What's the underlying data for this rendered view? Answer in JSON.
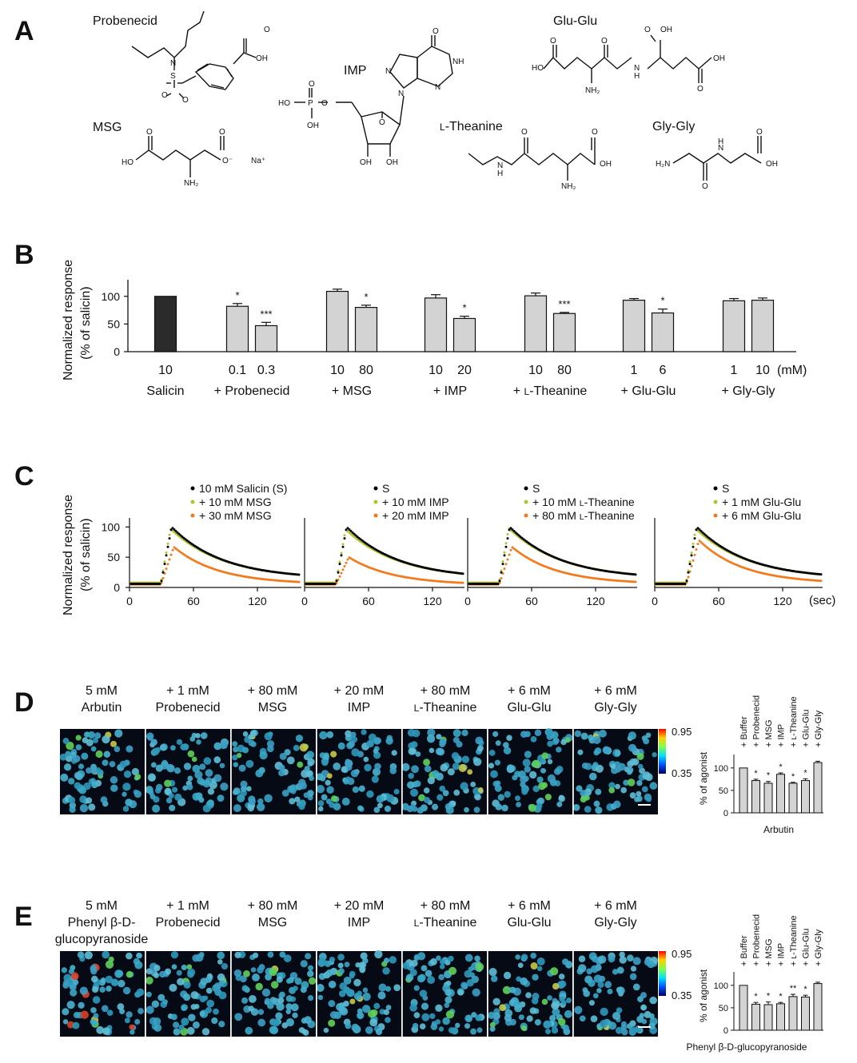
{
  "panels": {
    "a": "A",
    "b": "B",
    "c": "C",
    "d": "D",
    "e": "E"
  },
  "panel_a": {
    "compounds": [
      "Probenecid",
      "IMP",
      "Glu-Glu",
      "MSG",
      "L-Theanine",
      "Gly-Gly"
    ],
    "l_prefix": "L",
    "theanine_suffix": "-Theanine"
  },
  "panel_b": {
    "ylabel_1": "Normalized response",
    "ylabel_2": "(% of salicin)",
    "unit": "(mM)",
    "groups": [
      "Salicin",
      "+ Probenecid",
      "+ MSG",
      "+ IMP",
      "+ L-Theanine",
      "+ Glu-Glu",
      "+ Gly-Gly"
    ]
  },
  "panel_c": {
    "ylabel_1": "Normalized response",
    "ylabel_2": "(% of salicin)",
    "xunit": "(sec)",
    "colors": {
      "S": "#000000",
      "low": "#b5c22b",
      "high": "#f07a1c"
    },
    "legends": [
      [
        "10 mM Salicin (S)",
        "+ 10 mM MSG",
        "+ 30 mM MSG"
      ],
      [
        "S",
        "+ 10 mM IMP",
        "+ 20 mM IMP"
      ],
      [
        "S",
        "+ 10 mM L-Theanine",
        "+ 80 mM L-Theanine"
      ],
      [
        "S",
        "+ 1 mM Glu-Glu",
        "+ 6 mM Glu-Glu"
      ]
    ]
  },
  "panel_d": {
    "headers": [
      [
        "5 mM",
        "Arbutin"
      ],
      [
        "+ 1 mM",
        "Probenecid"
      ],
      [
        "+ 80 mM",
        "MSG"
      ],
      [
        "+ 20 mM",
        "IMP"
      ],
      [
        "+ 80 mM",
        "L-Theanine"
      ],
      [
        "+ 6 mM",
        "Glu-Glu"
      ],
      [
        "+ 6 mM",
        "Gly-Gly"
      ]
    ],
    "colorbar_max": "0.95",
    "colorbar_min": "0.35",
    "ylabel": "% of agonist",
    "xlabel": "Arbutin"
  },
  "panel_e": {
    "headers": [
      [
        "5 mM",
        "Phenyl  β-D-",
        "glucopyranoside"
      ],
      [
        "+ 1 mM",
        "Probenecid"
      ],
      [
        "+ 80 mM",
        "MSG"
      ],
      [
        "+ 20 mM",
        "IMP"
      ],
      [
        "+ 80 mM",
        "L-Theanine"
      ],
      [
        "+ 6 mM",
        "Glu-Glu"
      ],
      [
        "+ 6 mM",
        "Gly-Gly"
      ]
    ],
    "colorbar_max": "0.95",
    "colorbar_min": "0.35",
    "ylabel": "% of agonist",
    "xlabel": "Phenyl β-D-glucopyranoside"
  },
  "chart_data": [
    {
      "id": "B",
      "type": "bar",
      "ylabel": "Normalized response (% of salicin)",
      "ylim": [
        0,
        130
      ],
      "yticks": [
        0,
        50,
        100
      ],
      "groups": [
        {
          "name": "Salicin",
          "concs": [
            "10"
          ],
          "values": [
            100
          ],
          "errors": [
            0
          ],
          "sig": [
            ""
          ],
          "dark": true
        },
        {
          "name": "+ Probenecid",
          "concs": [
            "0.1",
            "0.3"
          ],
          "values": [
            82,
            47
          ],
          "errors": [
            5,
            6
          ],
          "sig": [
            "*",
            "***"
          ]
        },
        {
          "name": "+ MSG",
          "concs": [
            "10",
            "80"
          ],
          "values": [
            109,
            80
          ],
          "errors": [
            4,
            4
          ],
          "sig": [
            "",
            "*"
          ]
        },
        {
          "name": "+ IMP",
          "concs": [
            "10",
            "20"
          ],
          "values": [
            97,
            60
          ],
          "errors": [
            6,
            4
          ],
          "sig": [
            "",
            "*"
          ]
        },
        {
          "name": "+ L-Theanine",
          "concs": [
            "10",
            "80"
          ],
          "values": [
            101,
            69
          ],
          "errors": [
            5,
            2
          ],
          "sig": [
            "",
            "***"
          ]
        },
        {
          "name": "+ Glu-Glu",
          "concs": [
            "1",
            "6"
          ],
          "values": [
            93,
            70
          ],
          "errors": [
            3,
            7
          ],
          "sig": [
            "",
            "*"
          ]
        },
        {
          "name": "+ Gly-Gly",
          "concs": [
            "1",
            "10"
          ],
          "values": [
            92,
            93
          ],
          "errors": [
            4,
            4
          ],
          "sig": [
            "",
            ""
          ]
        }
      ]
    },
    {
      "id": "C",
      "type": "scatter",
      "xlabel": "(sec)",
      "ylabel": "Normalized response (% of salicin)",
      "xticks": [
        0,
        60,
        120
      ],
      "yticks": [
        0,
        50,
        100
      ],
      "xlim": [
        0,
        150
      ],
      "ylim": [
        0,
        115
      ],
      "series": [
        {
          "name": "10 mM Salicin (S)",
          "onset": 28,
          "peak": 100,
          "tpeak": 38,
          "tau": 48,
          "base": 6,
          "plateau": 14
        },
        {
          "name": "+ 10 mM MSG",
          "onset": 28,
          "peak": 97,
          "tpeak": 37,
          "tau": 50,
          "base": 8,
          "plateau": 14
        },
        {
          "name": "+ 30 mM MSG",
          "onset": 28,
          "peak": 67,
          "tpeak": 40,
          "tau": 42,
          "base": 5,
          "plateau": 8
        }
      ],
      "subplots": [
        {
          "legend": [
            "10 mM Salicin (S)",
            "+ 10 mM MSG",
            "+ 30 mM MSG"
          ],
          "peaks": [
            100,
            97,
            67
          ]
        },
        {
          "legend": [
            "S",
            "+ 10 mM IMP",
            "+ 20 mM IMP"
          ],
          "peaks": [
            100,
            96,
            50
          ]
        },
        {
          "legend": [
            "S",
            "+ 10 mM L-Theanine",
            "+ 80 mM L-Theanine"
          ],
          "peaks": [
            100,
            98,
            67
          ]
        },
        {
          "legend": [
            "S",
            "+ 1 mM Glu-Glu",
            "+ 6 mM Glu-Glu"
          ],
          "peaks": [
            100,
            97,
            78
          ]
        }
      ]
    },
    {
      "id": "D",
      "type": "bar",
      "categories": [
        "+ Buffer",
        "+ Probenecid",
        "+ MSG",
        "+ IMP",
        "+ L-Theanine",
        "+ Glu-Glu",
        "+ Gly-Gly"
      ],
      "values": [
        100,
        72,
        66,
        86,
        66,
        72,
        112
      ],
      "errors": [
        0,
        3,
        4,
        3,
        2,
        4,
        3
      ],
      "sig": [
        "",
        "*",
        "*",
        "*",
        "*",
        "*",
        ""
      ],
      "ylabel": "% of agonist",
      "xlabel": "Arbutin",
      "ylim": [
        0,
        130
      ],
      "yticks": [
        0,
        50,
        100
      ]
    },
    {
      "id": "E",
      "type": "bar",
      "categories": [
        "+ Buffer",
        "+ Probenecid",
        "+ MSG",
        "+ IMP",
        "+ L-Theanine",
        "+ Glu-Glu",
        "+ Gly-Gly"
      ],
      "values": [
        100,
        58,
        57,
        59,
        75,
        74,
        104
      ],
      "errors": [
        0,
        4,
        6,
        3,
        5,
        4,
        3
      ],
      "sig": [
        "",
        "*",
        "*",
        "*",
        "**",
        "*",
        ""
      ],
      "ylabel": "% of agonist",
      "xlabel": "Phenyl β-D-glucopyranoside",
      "ylim": [
        0,
        130
      ],
      "yticks": [
        0,
        50,
        100
      ]
    }
  ]
}
